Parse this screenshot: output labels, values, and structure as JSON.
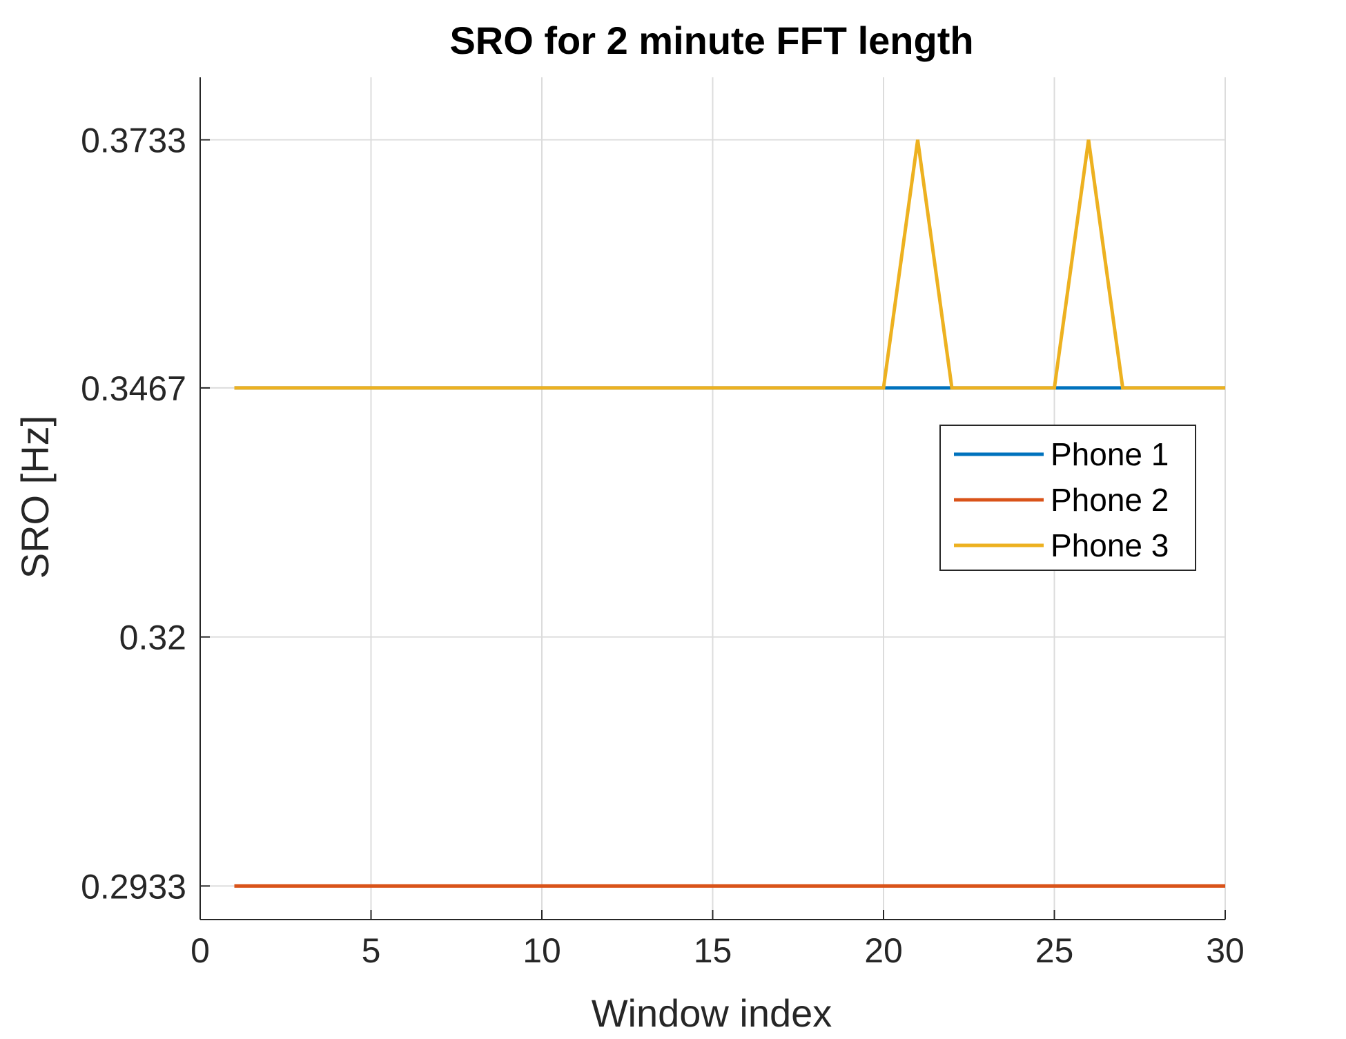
{
  "chart_data": {
    "type": "line",
    "title": "SRO for 2 minute FFT length",
    "xlabel": "Window index",
    "ylabel": "SRO [Hz]",
    "xlim": [
      0,
      30
    ],
    "ylim": [
      0.2897,
      0.38
    ],
    "xticks": [
      0,
      5,
      10,
      15,
      20,
      25,
      30
    ],
    "xtick_labels": [
      "0",
      "5",
      "10",
      "15",
      "20",
      "25",
      "30"
    ],
    "yticks": [
      0.2933,
      0.32,
      0.3467,
      0.3733
    ],
    "ytick_labels": [
      "0.2933",
      "0.32",
      "0.3467",
      "0.3733"
    ],
    "grid": true,
    "legend_position": "right",
    "x": [
      1,
      2,
      3,
      4,
      5,
      6,
      7,
      8,
      9,
      10,
      11,
      12,
      13,
      14,
      15,
      16,
      17,
      18,
      19,
      20,
      21,
      22,
      23,
      24,
      25,
      26,
      27,
      28,
      29,
      30
    ],
    "series": [
      {
        "name": "Phone 1",
        "color": "#0072BD",
        "values": [
          0.3467,
          0.3467,
          0.3467,
          0.3467,
          0.3467,
          0.3467,
          0.3467,
          0.3467,
          0.3467,
          0.3467,
          0.3467,
          0.3467,
          0.3467,
          0.3467,
          0.3467,
          0.3467,
          0.3467,
          0.3467,
          0.3467,
          0.3467,
          0.3467,
          0.3467,
          0.3467,
          0.3467,
          0.3467,
          0.3467,
          0.3467,
          0.3467,
          0.3467,
          0.3467
        ]
      },
      {
        "name": "Phone 2",
        "color": "#D95319",
        "values": [
          0.2933,
          0.2933,
          0.2933,
          0.2933,
          0.2933,
          0.2933,
          0.2933,
          0.2933,
          0.2933,
          0.2933,
          0.2933,
          0.2933,
          0.2933,
          0.2933,
          0.2933,
          0.2933,
          0.2933,
          0.2933,
          0.2933,
          0.2933,
          0.2933,
          0.2933,
          0.2933,
          0.2933,
          0.2933,
          0.2933,
          0.2933,
          0.2933,
          0.2933,
          0.2933
        ]
      },
      {
        "name": "Phone 3",
        "color": "#EDB120",
        "values": [
          0.3467,
          0.3467,
          0.3467,
          0.3467,
          0.3467,
          0.3467,
          0.3467,
          0.3467,
          0.3467,
          0.3467,
          0.3467,
          0.3467,
          0.3467,
          0.3467,
          0.3467,
          0.3467,
          0.3467,
          0.3467,
          0.3467,
          0.3467,
          0.3733,
          0.3467,
          0.3467,
          0.3467,
          0.3467,
          0.3733,
          0.3467,
          0.3467,
          0.3467,
          0.3467
        ]
      }
    ]
  }
}
